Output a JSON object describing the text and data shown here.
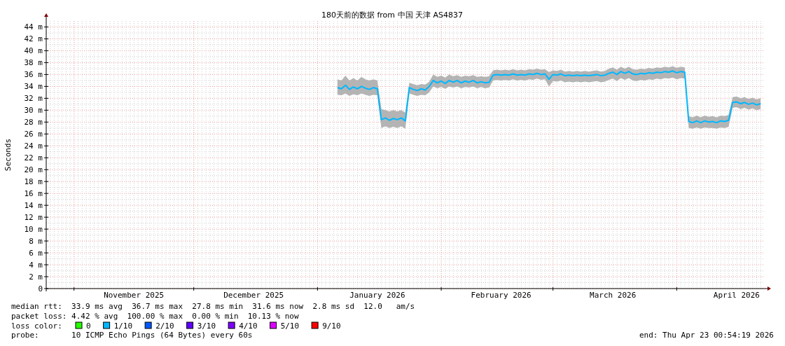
{
  "chart_data": {
    "type": "line",
    "title": "180天前的数据 from 中国 天津 AS4837",
    "ylabel": "Seconds",
    "xlim": [
      "2025-10-25T00:54",
      "2026-04-23T00:54"
    ],
    "xticks": [
      {
        "value": "2025-11-01",
        "label": null
      },
      {
        "value": "2025-12-01",
        "label": null
      },
      {
        "value": "2026-01-01",
        "label": null
      },
      {
        "value": "2026-02-01",
        "label": null
      },
      {
        "value": "2026-03-01",
        "label": null
      },
      {
        "value": "2026-04-01",
        "label": null
      },
      {
        "value": "2025-11-16",
        "label": "November 2025"
      },
      {
        "value": "2025-12-16",
        "label": "December 2025"
      },
      {
        "value": "2026-01-16",
        "label": "January 2026"
      },
      {
        "value": "2026-02-16",
        "label": "February 2026"
      },
      {
        "value": "2026-03-16",
        "label": "March 2026"
      },
      {
        "value": "2026-04-16",
        "label": "April 2026"
      }
    ],
    "ylim": [
      0,
      45
    ],
    "yticks": [
      0,
      {
        "value": 2,
        "label": "2 m"
      },
      {
        "value": 4,
        "label": "4 m"
      },
      {
        "value": 6,
        "label": "6 m"
      },
      {
        "value": 8,
        "label": "8 m"
      },
      {
        "value": 10,
        "label": "10 m"
      },
      {
        "value": 12,
        "label": "12 m"
      },
      {
        "value": 14,
        "label": "14 m"
      },
      {
        "value": 16,
        "label": "16 m"
      },
      {
        "value": 18,
        "label": "18 m"
      },
      {
        "value": 20,
        "label": "20 m"
      },
      {
        "value": 22,
        "label": "22 m"
      },
      {
        "value": 24,
        "label": "24 m"
      },
      {
        "value": 26,
        "label": "26 m"
      },
      {
        "value": 28,
        "label": "28 m"
      },
      {
        "value": 30,
        "label": "30 m"
      },
      {
        "value": 32,
        "label": "32 m"
      },
      {
        "value": 34,
        "label": "34 m"
      },
      {
        "value": 36,
        "label": "36 m"
      },
      {
        "value": 38,
        "label": "38 m"
      },
      {
        "value": 40,
        "label": "40 m"
      },
      {
        "value": 42,
        "label": "42 m"
      },
      {
        "value": 44,
        "label": "44 m"
      }
    ],
    "grid": true,
    "legend": "bottom",
    "legend_title": "loss color:",
    "series": [
      {
        "color": "#00b8ff",
        "x": [
          "2026-01-06",
          "2026-01-07",
          "2026-01-08",
          "2026-01-09",
          "2026-01-10",
          "2026-01-11",
          "2026-01-12",
          "2026-01-13",
          "2026-01-14",
          "2026-01-15",
          "2026-01-16",
          "2026-01-17",
          "2026-01-18",
          "2026-01-19",
          "2026-01-20",
          "2026-01-21",
          "2026-01-22",
          "2026-01-23",
          "2026-01-24",
          "2026-01-25",
          "2026-01-26",
          "2026-01-27",
          "2026-01-28",
          "2026-01-29",
          "2026-01-30",
          "2026-01-31",
          "2026-02-01",
          "2026-02-02",
          "2026-02-03",
          "2026-02-04",
          "2026-02-05",
          "2026-02-06",
          "2026-02-07",
          "2026-02-08",
          "2026-02-09",
          "2026-02-10",
          "2026-02-11",
          "2026-02-12",
          "2026-02-13",
          "2026-02-14",
          "2026-02-15",
          "2026-02-16",
          "2026-02-17",
          "2026-02-18",
          "2026-02-19",
          "2026-02-20",
          "2026-02-21",
          "2026-02-22",
          "2026-02-23",
          "2026-02-24",
          "2026-02-25",
          "2026-02-26",
          "2026-02-27",
          "2026-02-28",
          "2026-03-01",
          "2026-03-02",
          "2026-03-03",
          "2026-03-04",
          "2026-03-05",
          "2026-03-06",
          "2026-03-07",
          "2026-03-08",
          "2026-03-09",
          "2026-03-10",
          "2026-03-11",
          "2026-03-12",
          "2026-03-13",
          "2026-03-14",
          "2026-03-15",
          "2026-03-16",
          "2026-03-17",
          "2026-03-18",
          "2026-03-19",
          "2026-03-20",
          "2026-03-21",
          "2026-03-22",
          "2026-03-23",
          "2026-03-24",
          "2026-03-25",
          "2026-03-26",
          "2026-03-27",
          "2026-03-28",
          "2026-03-29",
          "2026-03-30",
          "2026-03-31",
          "2026-04-01",
          "2026-04-02",
          "2026-04-03",
          "2026-04-04",
          "2026-04-05",
          "2026-04-06",
          "2026-04-07",
          "2026-04-08",
          "2026-04-09",
          "2026-04-10",
          "2026-04-11",
          "2026-04-12",
          "2026-04-13",
          "2026-04-14",
          "2026-04-15",
          "2026-04-16",
          "2026-04-17",
          "2026-04-18",
          "2026-04-19",
          "2026-04-20",
          "2026-04-21",
          "2026-04-22"
        ],
        "values": [
          33.8,
          33.6,
          34.2,
          33.5,
          33.9,
          33.6,
          34.0,
          33.7,
          33.5,
          33.8,
          33.6,
          28.4,
          28.7,
          28.3,
          28.6,
          28.4,
          28.7,
          28.2,
          33.8,
          33.5,
          33.3,
          33.6,
          33.4,
          34.0,
          35.0,
          34.6,
          34.9,
          34.5,
          35.0,
          34.7,
          35.0,
          34.6,
          34.9,
          34.7,
          35.0,
          34.6,
          34.8,
          34.6,
          34.7,
          35.9,
          36.0,
          35.9,
          36.0,
          35.9,
          36.1,
          35.9,
          36.0,
          35.9,
          36.1,
          36.0,
          36.2,
          36.0,
          36.1,
          35.2,
          36.0,
          35.9,
          36.1,
          35.8,
          35.9,
          35.8,
          35.9,
          35.8,
          35.9,
          35.8,
          35.9,
          36.0,
          35.8,
          35.9,
          36.2,
          36.4,
          36.0,
          36.5,
          36.2,
          36.5,
          36.1,
          36.0,
          36.2,
          36.1,
          36.3,
          36.2,
          36.4,
          36.3,
          36.5,
          36.4,
          36.6,
          36.3,
          36.5,
          36.4,
          28.1,
          27.9,
          28.2,
          27.9,
          28.2,
          28.0,
          28.1,
          27.9,
          28.2,
          28.1,
          28.3,
          31.3,
          31.4,
          31.1,
          31.3,
          31.0,
          31.2,
          30.9,
          31.1
        ],
        "lower": [
          32.6,
          32.5,
          32.8,
          32.4,
          32.7,
          32.5,
          32.8,
          32.6,
          32.4,
          32.6,
          32.5,
          27.0,
          27.3,
          27.0,
          27.2,
          27.0,
          27.3,
          26.9,
          32.8,
          32.6,
          32.4,
          32.6,
          32.5,
          33.0,
          34.0,
          33.7,
          33.9,
          33.6,
          34.0,
          33.8,
          34.0,
          33.7,
          33.9,
          33.8,
          34.0,
          33.7,
          33.9,
          33.7,
          33.8,
          35.0,
          35.1,
          35.0,
          35.1,
          35.0,
          35.2,
          35.0,
          35.1,
          35.0,
          35.2,
          35.1,
          35.3,
          35.1,
          35.2,
          34.0,
          34.9,
          34.8,
          35.0,
          34.7,
          34.8,
          34.7,
          34.8,
          34.7,
          34.8,
          34.7,
          34.8,
          34.9,
          34.7,
          34.8,
          35.1,
          35.3,
          34.9,
          35.4,
          35.1,
          35.4,
          35.0,
          34.9,
          35.1,
          35.0,
          35.2,
          35.1,
          35.3,
          35.2,
          35.4,
          35.3,
          35.5,
          35.2,
          35.4,
          35.3,
          27.0,
          26.9,
          27.1,
          26.9,
          27.1,
          27.0,
          27.0,
          26.9,
          27.1,
          27.0,
          27.2,
          30.4,
          30.5,
          30.2,
          30.4,
          30.1,
          30.3,
          30.0,
          30.2
        ],
        "upper": [
          35.2,
          35.0,
          35.8,
          35.0,
          35.4,
          35.0,
          35.6,
          35.2,
          35.0,
          35.2,
          35.0,
          30.2,
          30.0,
          29.8,
          30.0,
          29.8,
          30.0,
          29.6,
          34.6,
          34.4,
          34.2,
          34.4,
          34.3,
          34.8,
          36.0,
          35.6,
          35.8,
          35.5,
          36.0,
          35.7,
          35.9,
          35.6,
          35.8,
          35.7,
          35.9,
          35.6,
          35.7,
          35.6,
          35.7,
          36.7,
          36.8,
          36.7,
          36.8,
          36.7,
          36.9,
          36.7,
          36.8,
          36.7,
          36.9,
          36.8,
          37.0,
          36.8,
          36.9,
          36.4,
          36.7,
          36.6,
          36.8,
          36.5,
          36.6,
          36.5,
          36.6,
          36.5,
          36.6,
          36.5,
          36.6,
          36.7,
          36.5,
          36.6,
          37.0,
          37.2,
          36.8,
          37.3,
          37.0,
          37.3,
          36.9,
          36.8,
          37.0,
          36.9,
          37.1,
          37.0,
          37.2,
          37.1,
          37.3,
          37.2,
          37.4,
          37.1,
          37.3,
          37.2,
          29.0,
          28.8,
          29.1,
          28.8,
          29.1,
          28.9,
          29.0,
          28.8,
          29.1,
          29.0,
          29.2,
          32.2,
          32.3,
          32.0,
          32.2,
          31.9,
          32.1,
          31.8,
          32.0
        ]
      },
      {
        "name": "0",
        "color": "#26ff00"
      },
      {
        "name": "1/10",
        "color": "#00b8ff"
      },
      {
        "name": "2/10",
        "color": "#0059ff"
      },
      {
        "name": "3/10",
        "color": "#5e00ff"
      },
      {
        "name": "4/10",
        "color": "#7e00ff"
      },
      {
        "name": "5/10",
        "color": "#dd00ff"
      },
      {
        "name": "9/10",
        "color": "#ff0000"
      }
    ],
    "annotations": [
      "median rtt:  33.9 ms avg  36.7 ms max  27.8 ms min  31.6 ms now  2.8 ms sd  12.0   am/s",
      "packet loss: 4.42 % avg  100.00 % max  0.00 % min  10.13 % now",
      "probe:       10 ICMP Echo Pings (64 Bytes) every 60s",
      "end: Thu Apr 23 00:54:19 2026"
    ]
  }
}
